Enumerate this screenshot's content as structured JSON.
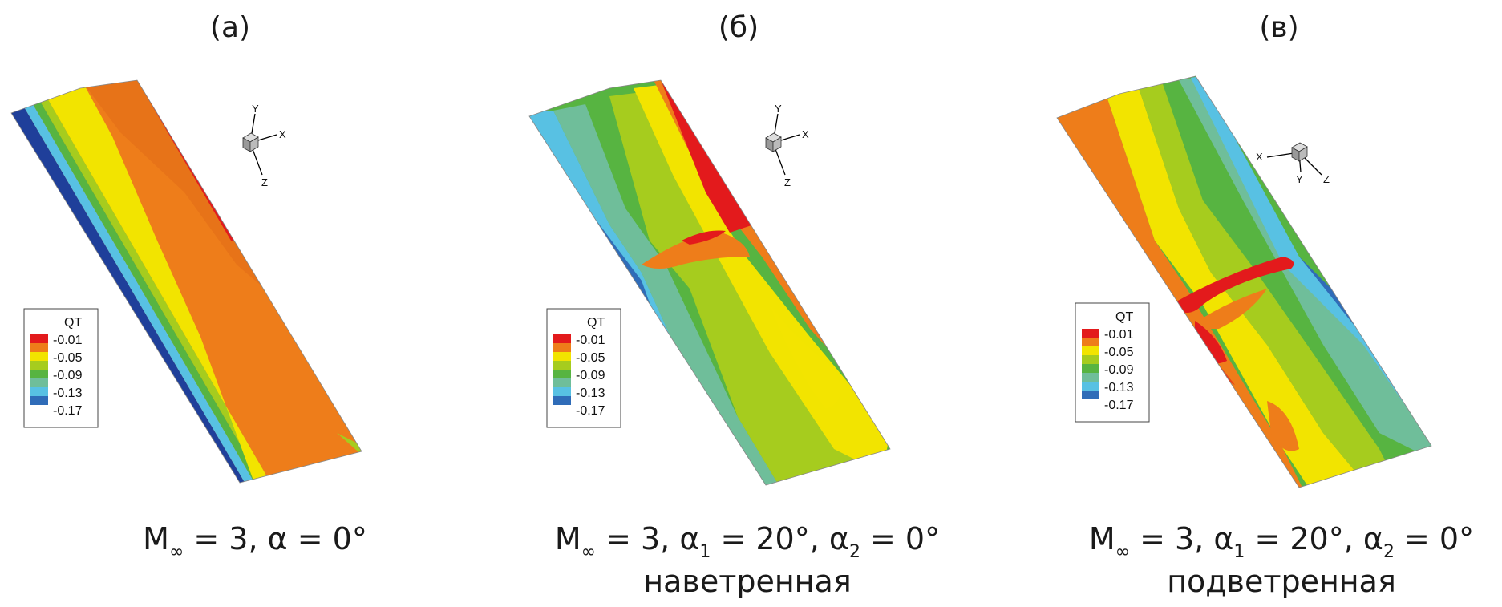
{
  "panels": [
    {
      "label": "(а)",
      "caption": {
        "prefix": "M",
        "sub": "∞",
        "rest": " = 3, α = 0°",
        "line2": ""
      },
      "axes": [
        "Y",
        "X",
        "Z"
      ]
    },
    {
      "label": "(б)",
      "caption": {
        "prefix": "M",
        "sub": "∞",
        "rest": " = 3, α",
        "sub1": "1",
        "rest2": " = 20°, α",
        "sub2": "2",
        "rest3": " = 0°",
        "line2": "наветренная"
      },
      "axes": [
        "Y",
        "X",
        "Z"
      ]
    },
    {
      "label": "(в)",
      "caption": {
        "prefix": "M",
        "sub": "∞",
        "rest": " = 3, α",
        "sub1": "1",
        "rest2": " = 20°, α",
        "sub2": "2",
        "rest3": " = 0°",
        "line2": "подветренная"
      },
      "axes": [
        "X",
        "Y",
        "Z"
      ]
    }
  ],
  "legend": {
    "title": "QT",
    "levels": [
      "-0.01",
      "-0.05",
      "-0.09",
      "-0.13",
      "-0.17"
    ],
    "colors": [
      "#e31a1c",
      "#ee7d1a",
      "#f2e400",
      "#a6cc1e",
      "#57b441",
      "#6fbe9a",
      "#58c1e3",
      "#2f6cb8"
    ]
  },
  "palette": {
    "red": "#e31a1c",
    "orange": "#ee7d1a",
    "yellow": "#f2e400",
    "yellow_green": "#b8d21c",
    "green": "#57b441",
    "teal": "#6fbe9a",
    "cyan": "#58c1e3",
    "blue": "#2f6cb8",
    "dark_blue": "#1f3f9a"
  }
}
